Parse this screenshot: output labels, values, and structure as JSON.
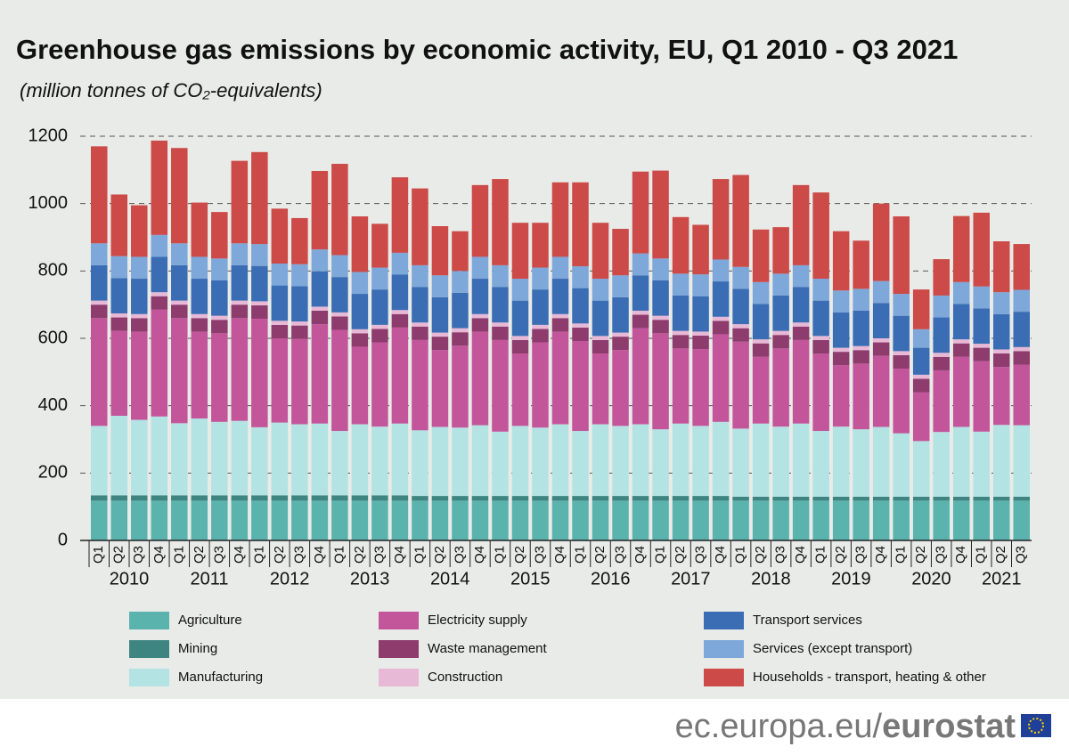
{
  "chart_data": {
    "type": "stacked-bar",
    "title": "Greenhouse gas emissions by economic activity,  EU, Q1 2010 - Q3 2021",
    "subtitle": "(million tonnes of CO₂-equivalents)",
    "categories": [
      "Q1",
      "Q2",
      "Q3",
      "Q4",
      "Q1",
      "Q2",
      "Q3",
      "Q4",
      "Q1",
      "Q2",
      "Q3",
      "Q4",
      "Q1",
      "Q2",
      "Q3",
      "Q4",
      "Q1",
      "Q2",
      "Q3",
      "Q4",
      "Q1",
      "Q2",
      "Q3",
      "Q4",
      "Q1",
      "Q2",
      "Q3",
      "Q4",
      "Q1",
      "Q2",
      "Q3",
      "Q4",
      "Q1",
      "Q2",
      "Q3",
      "Q4",
      "Q1",
      "Q2",
      "Q3",
      "Q4",
      "Q1",
      "Q2",
      "Q3",
      "Q4",
      "Q1",
      "Q2",
      "Q3"
    ],
    "year_labels": [
      "2010",
      "2011",
      "2012",
      "2013",
      "2014",
      "2015",
      "2016",
      "2017",
      "2018",
      "2019",
      "2020",
      "2021"
    ],
    "ylim": [
      0,
      1200
    ],
    "yticks": [
      0,
      200,
      400,
      600,
      800,
      1000,
      1200
    ],
    "grid": true,
    "series": [
      {
        "name": "Agriculture",
        "color": "#5bb3ae",
        "values": [
          118,
          118,
          118,
          118,
          118,
          118,
          118,
          118,
          118,
          118,
          118,
          118,
          118,
          118,
          118,
          118,
          118,
          118,
          118,
          118,
          118,
          118,
          118,
          118,
          118,
          118,
          118,
          118,
          118,
          118,
          118,
          118,
          118,
          118,
          118,
          118,
          118,
          118,
          118,
          118,
          118,
          118,
          118,
          118,
          118,
          118,
          118
        ]
      },
      {
        "name": "Mining",
        "color": "#3e8582",
        "values": [
          16,
          16,
          16,
          16,
          16,
          16,
          16,
          16,
          16,
          16,
          16,
          16,
          16,
          16,
          16,
          16,
          14,
          14,
          14,
          14,
          14,
          14,
          14,
          14,
          14,
          14,
          14,
          14,
          14,
          14,
          14,
          14,
          12,
          12,
          12,
          12,
          12,
          12,
          12,
          12,
          12,
          12,
          12,
          12,
          12,
          12,
          12
        ]
      },
      {
        "name": "Manufacturing",
        "color": "#b3e3e3",
        "values": [
          206,
          236,
          224,
          234,
          214,
          228,
          218,
          221,
          202,
          216,
          211,
          213,
          191,
          211,
          204,
          213,
          195,
          205,
          203,
          210,
          191,
          208,
          203,
          213,
          193,
          213,
          208,
          213,
          198,
          215,
          208,
          220,
          202,
          217,
          208,
          217,
          195,
          208,
          200,
          207,
          188,
          165,
          192,
          207,
          193,
          213,
          212
        ]
      },
      {
        "name": "Electricity supply",
        "color": "#c3569b",
        "values": [
          320,
          252,
          262,
          317,
          312,
          258,
          263,
          305,
          322,
          250,
          253,
          295,
          300,
          230,
          250,
          285,
          268,
          228,
          243,
          278,
          272,
          215,
          253,
          275,
          267,
          210,
          225,
          285,
          285,
          223,
          228,
          260,
          258,
          198,
          232,
          248,
          230,
          182,
          195,
          211,
          192,
          145,
          183,
          208,
          209,
          172,
          180
        ]
      },
      {
        "name": "Waste management",
        "color": "#8e3b6e",
        "values": [
          40,
          40,
          40,
          40,
          40,
          40,
          40,
          40,
          40,
          40,
          40,
          40,
          40,
          40,
          40,
          40,
          40,
          40,
          40,
          40,
          40,
          40,
          40,
          40,
          40,
          40,
          40,
          40,
          40,
          40,
          40,
          40,
          40,
          40,
          40,
          40,
          40,
          40,
          40,
          40,
          40,
          40,
          40,
          40,
          40,
          40,
          40
        ]
      },
      {
        "name": "Construction",
        "color": "#e8b9d6",
        "values": [
          12,
          12,
          12,
          12,
          12,
          12,
          12,
          12,
          12,
          12,
          12,
          12,
          12,
          12,
          12,
          12,
          12,
          12,
          12,
          12,
          12,
          12,
          12,
          12,
          12,
          12,
          12,
          12,
          12,
          12,
          12,
          12,
          12,
          12,
          12,
          12,
          12,
          12,
          12,
          12,
          12,
          12,
          12,
          12,
          12,
          12,
          12
        ]
      },
      {
        "name": "Transport services",
        "color": "#3a6db3",
        "values": [
          105,
          105,
          105,
          105,
          105,
          105,
          105,
          105,
          105,
          105,
          105,
          105,
          105,
          105,
          105,
          105,
          105,
          105,
          105,
          105,
          105,
          105,
          105,
          105,
          105,
          105,
          105,
          105,
          105,
          105,
          105,
          105,
          105,
          105,
          105,
          105,
          105,
          105,
          105,
          105,
          105,
          80,
          105,
          105,
          105,
          105,
          105
        ]
      },
      {
        "name": "Services (except transport)",
        "color": "#7ea7da",
        "values": [
          65,
          65,
          65,
          65,
          65,
          65,
          65,
          65,
          65,
          65,
          65,
          65,
          65,
          65,
          65,
          65,
          65,
          65,
          65,
          65,
          65,
          65,
          65,
          65,
          65,
          65,
          65,
          65,
          65,
          65,
          65,
          65,
          65,
          65,
          65,
          65,
          65,
          65,
          65,
          65,
          65,
          55,
          65,
          65,
          65,
          65,
          65
        ]
      },
      {
        "name": "Households - transport, heating & other",
        "color": "#cc4a47",
        "values": [
          288,
          183,
          153,
          280,
          283,
          161,
          138,
          245,
          273,
          163,
          137,
          233,
          271,
          165,
          130,
          224,
          228,
          146,
          118,
          213,
          256,
          166,
          133,
          221,
          249,
          166,
          138,
          243,
          261,
          168,
          147,
          239,
          273,
          156,
          138,
          238,
          256,
          176,
          143,
          230,
          230,
          118,
          108,
          196,
          219,
          151,
          136
        ]
      }
    ]
  },
  "footer": {
    "domain": "ec.europa.eu/",
    "brand": "eurostat"
  }
}
